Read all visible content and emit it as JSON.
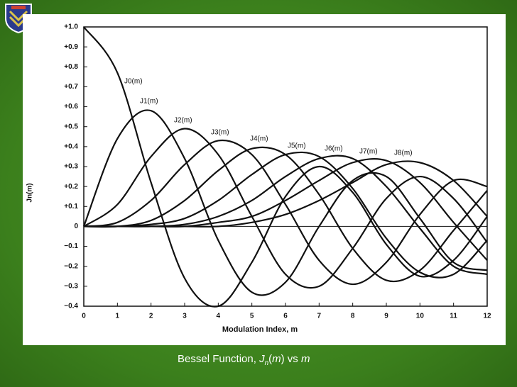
{
  "chart_data": {
    "type": "line",
    "xlabel": "Modulation Index, m",
    "ylabel": "Jn(m)",
    "x": [
      0,
      1,
      2,
      3,
      4,
      5,
      6,
      7,
      8,
      9,
      10,
      11,
      12
    ],
    "xlim": [
      0,
      12
    ],
    "xticks": [
      0,
      1,
      2,
      3,
      4,
      5,
      6,
      7,
      8,
      9,
      10,
      11,
      12
    ],
    "ylim": [
      -0.4,
      1.0
    ],
    "yticks": [
      {
        "value": 1.0,
        "label": "+1.0"
      },
      {
        "value": 0.9,
        "label": "+0.9"
      },
      {
        "value": 0.8,
        "label": "+0.8"
      },
      {
        "value": 0.7,
        "label": "+0.7"
      },
      {
        "value": 0.6,
        "label": "+0.6"
      },
      {
        "value": 0.5,
        "label": "+0.5"
      },
      {
        "value": 0.4,
        "label": "+0.4"
      },
      {
        "value": 0.3,
        "label": "+0.3"
      },
      {
        "value": 0.2,
        "label": "+0.2"
      },
      {
        "value": 0.1,
        "label": "+0.1"
      },
      0,
      {
        "value": -0.1,
        "label": "−0.1"
      },
      {
        "value": -0.2,
        "label": "−0.2"
      },
      {
        "value": -0.3,
        "label": "−0.3"
      },
      {
        "value": -0.4,
        "label": "−0.4"
      }
    ],
    "series": [
      {
        "name": "J0(m)",
        "color": "#111111",
        "values": [
          1,
          0.77,
          0.22,
          -0.26,
          -0.4,
          -0.18,
          0.15,
          0.3,
          0.17,
          -0.09,
          -0.25,
          -0.17,
          0.05
        ]
      },
      {
        "name": "J1(m)",
        "color": "#111111",
        "values": [
          0,
          0.44,
          0.58,
          0.34,
          -0.07,
          -0.33,
          -0.28,
          0,
          0.23,
          0.25,
          0.04,
          -0.18,
          -0.22
        ]
      },
      {
        "name": "J2(m)",
        "color": "#111111",
        "values": [
          0,
          0.11,
          0.35,
          0.49,
          0.36,
          0.05,
          -0.24,
          -0.3,
          -0.11,
          0.14,
          0.25,
          0.14,
          -0.08
        ]
      },
      {
        "name": "J3(m)",
        "color": "#111111",
        "values": [
          0,
          0.02,
          0.13,
          0.31,
          0.43,
          0.36,
          0.11,
          -0.17,
          -0.29,
          -0.18,
          0.06,
          0.23,
          0.2
        ]
      },
      {
        "name": "J4(m)",
        "color": "#111111",
        "values": [
          0,
          0,
          0.03,
          0.13,
          0.28,
          0.39,
          0.36,
          0.16,
          -0.11,
          -0.27,
          -0.22,
          -0.02,
          0.18
        ]
      },
      {
        "name": "J5(m)",
        "color": "#111111",
        "values": [
          0,
          0,
          0.01,
          0.04,
          0.13,
          0.26,
          0.36,
          0.35,
          0.19,
          -0.06,
          -0.23,
          -0.24,
          -0.07
        ]
      },
      {
        "name": "J6(m)",
        "color": "#111111",
        "values": [
          0,
          0,
          0,
          0.01,
          0.05,
          0.13,
          0.25,
          0.34,
          0.34,
          0.2,
          -0.01,
          -0.2,
          -0.24
        ]
      },
      {
        "name": "J7(m)",
        "color": "#111111",
        "values": [
          0,
          0,
          0,
          0,
          0.02,
          0.05,
          0.13,
          0.23,
          0.32,
          0.33,
          0.22,
          0.02,
          -0.17
        ]
      },
      {
        "name": "J8(m)",
        "color": "#111111",
        "values": [
          0,
          0,
          0,
          0,
          0,
          0.02,
          0.06,
          0.13,
          0.22,
          0.31,
          0.32,
          0.23,
          0.05
        ]
      }
    ]
  },
  "caption": [
    "Bessel Function, ",
    "J",
    "n",
    "(",
    "m",
    ") vs ",
    "m"
  ]
}
